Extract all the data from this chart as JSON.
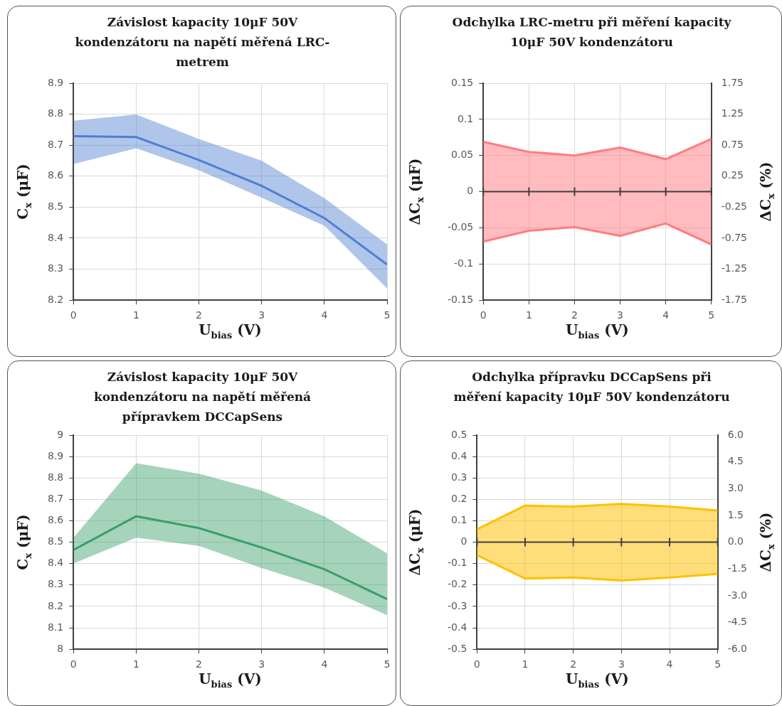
{
  "chart_data": [
    {
      "type": "line",
      "title": "Závislost kapacity 10μF 50V kondenzátoru na napětí měřená LRC-metrem",
      "xlabel": "U$_{bias}$ (V)",
      "ylabel": "C$_{x}$ (μF)",
      "x": [
        0,
        1,
        2,
        3,
        4,
        5
      ],
      "xlim": [
        0,
        5
      ],
      "xticks": [
        0,
        1,
        2,
        3,
        4,
        5
      ],
      "ylim": [
        8.2,
        8.9
      ],
      "yticks": [
        8.2,
        8.3,
        8.4,
        8.5,
        8.6,
        8.7,
        8.8,
        8.9
      ],
      "grid": true,
      "series": [
        {
          "color": "#4f7fd0",
          "values": [
            8.729,
            8.726,
            8.652,
            8.569,
            8.465,
            8.315
          ],
          "lower": [
            8.639,
            8.69,
            8.619,
            8.531,
            8.44,
            8.238
          ],
          "upper": [
            8.779,
            8.799,
            8.72,
            8.65,
            8.529,
            8.38
          ]
        }
      ]
    },
    {
      "type": "area",
      "title": "Odchylka LRC-metru při měření kapacity 10μF 50V kondenzátoru",
      "xlabel": "U$_{bias}$ (V)",
      "ylabel": "ΔC$_{x}$ (μF)",
      "y2label": "ΔC$_{x}$ (%)",
      "x": [
        0,
        1,
        2,
        3,
        4,
        5
      ],
      "xlim": [
        0,
        5
      ],
      "xticks": [
        0,
        1,
        2,
        3,
        4,
        5
      ],
      "ylim": [
        -0.15,
        0.15
      ],
      "yticks": [
        -0.15,
        -0.1,
        -0.05,
        0,
        0.05,
        0.1,
        0.15
      ],
      "y2lim": [
        -1.75,
        1.75
      ],
      "y2ticks": [
        -1.75,
        -1.25,
        -0.75,
        -0.25,
        0.25,
        0.75,
        1.25,
        1.75
      ],
      "grid": true,
      "ref_lines": [
        {
          "axis": "y",
          "value": 0,
          "color": "#404040"
        }
      ],
      "series": [
        {
          "color": "#ff7c80",
          "values": [
            0.069,
            0.055,
            0.05,
            0.061,
            0.045,
            0.073
          ]
        },
        {
          "color": "#ff7c80",
          "values": [
            -0.069,
            -0.054,
            -0.049,
            -0.061,
            -0.044,
            -0.073
          ]
        }
      ]
    },
    {
      "type": "line",
      "title": "Závislost kapacity 10μF 50V kondenzátoru na napětí měřená přípravkem DCCapSens",
      "xlabel": "U$_{bias}$ (V)",
      "ylabel": "C$_{x}$ (μF)",
      "x": [
        0,
        1,
        2,
        3,
        4,
        5
      ],
      "xlim": [
        0,
        5
      ],
      "xticks": [
        0,
        1,
        2,
        3,
        4,
        5
      ],
      "ylim": [
        8,
        9
      ],
      "yticks": [
        8,
        8.1,
        8.2,
        8.3,
        8.4,
        8.5,
        8.6,
        8.7,
        8.8,
        8.9,
        9
      ],
      "grid": true,
      "series": [
        {
          "color": "#3a9e68",
          "values": [
            8.464,
            8.621,
            8.566,
            8.475,
            8.374,
            8.234
          ],
          "lower": [
            8.401,
            8.521,
            8.483,
            8.379,
            8.288,
            8.159
          ],
          "upper": [
            8.521,
            8.869,
            8.82,
            8.741,
            8.621,
            8.448
          ]
        }
      ]
    },
    {
      "type": "area",
      "title": "Odchylka přípravku DCCapSens při měření kapacity 10μF 50V kondenzátoru",
      "xlabel": "U$_{bias}$ (V)",
      "ylabel": "ΔC$_{x}$ (μF)",
      "y2label": "ΔC$_{x}$ (%)",
      "x": [
        0,
        1,
        2,
        3,
        4,
        5
      ],
      "xlim": [
        0,
        5
      ],
      "xticks": [
        0,
        1,
        2,
        3,
        4,
        5
      ],
      "ylim": [
        -0.5,
        0.5
      ],
      "yticks": [
        -0.5,
        -0.4,
        -0.3,
        -0.2,
        -0.1,
        0,
        0.1,
        0.2,
        0.3,
        0.4,
        0.5
      ],
      "y2lim": [
        -6,
        6
      ],
      "y2ticks": [
        {
          "value": -6,
          "label": "-6.0"
        },
        {
          "value": -4.5,
          "label": "-4.5"
        },
        {
          "value": -3,
          "label": "-3.0"
        },
        {
          "value": -1.5,
          "label": "-1.5"
        },
        {
          "value": 0,
          "label": "0.0"
        },
        {
          "value": 1.5,
          "label": "1.5"
        },
        {
          "value": 3,
          "label": "3.0"
        },
        {
          "value": 4.5,
          "label": "4.5"
        },
        {
          "value": 6,
          "label": "6.0"
        }
      ],
      "grid": true,
      "ref_lines": [
        {
          "axis": "y",
          "value": 0,
          "color": "#404040"
        }
      ],
      "series": [
        {
          "color": "#ffc000",
          "values": [
            0.06,
            0.171,
            0.166,
            0.179,
            0.166,
            0.148
          ]
        },
        {
          "color": "#ffc000",
          "values": [
            -0.06,
            -0.17,
            -0.165,
            -0.179,
            -0.165,
            -0.148
          ]
        }
      ]
    }
  ]
}
